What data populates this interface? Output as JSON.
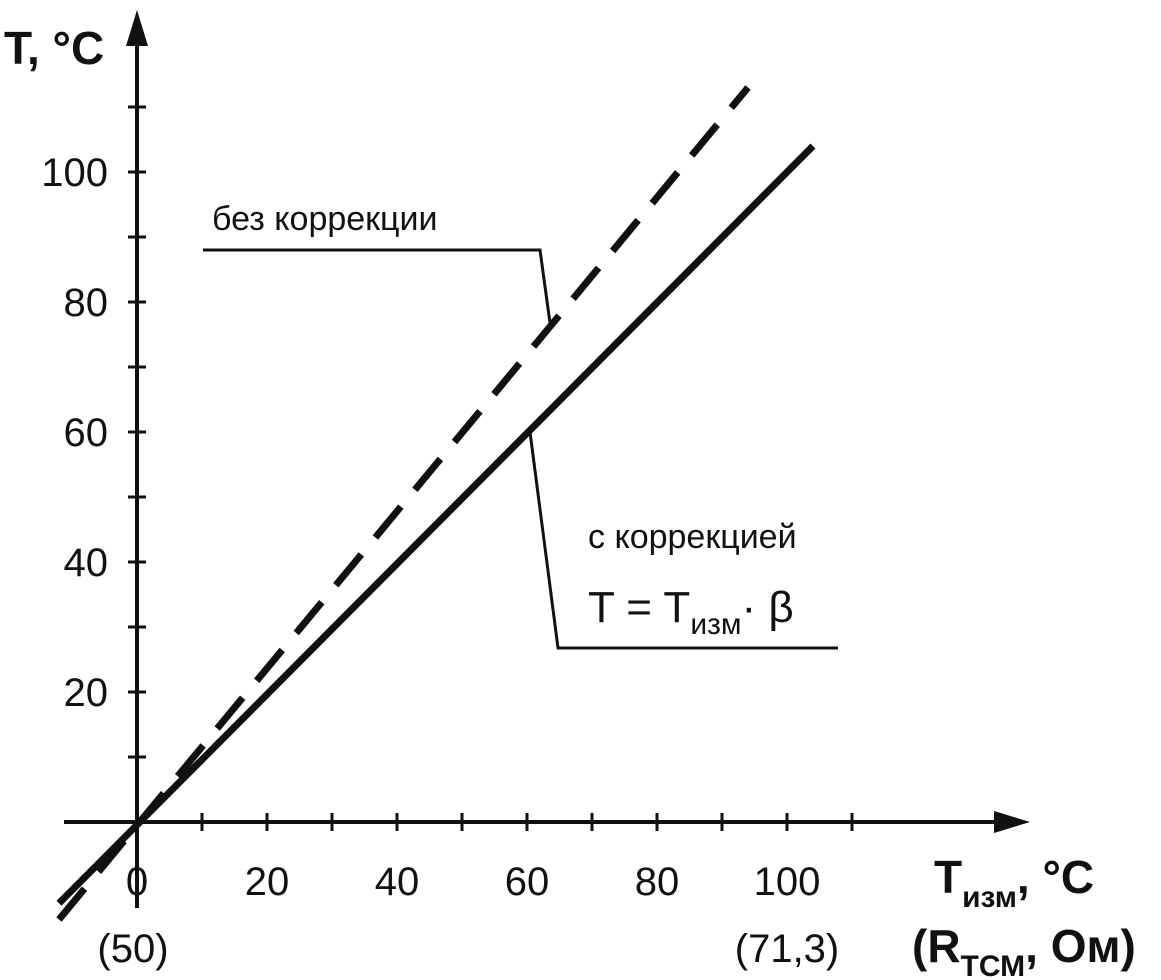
{
  "chart_data": {
    "type": "line",
    "y_axis": {
      "title": "T, °C",
      "ticks": [
        "20",
        "40",
        "60",
        "80",
        "100"
      ],
      "tick_values": [
        20,
        40,
        60,
        80,
        100
      ],
      "range": [
        -14,
        118
      ]
    },
    "x_axis": {
      "title_main": "T",
      "title_sub": "изм",
      "title_unit": ", °C",
      "alt_title_open": "(R",
      "alt_title_sub": "ТСМ",
      "alt_title_close": ", Ом)",
      "ticks": [
        "0",
        "20",
        "40",
        "60",
        "80",
        "100"
      ],
      "tick_values": [
        0,
        20,
        40,
        60,
        80,
        100
      ],
      "alt_ticks": [
        "(50)",
        "(71,3)"
      ],
      "alt_tick_values": [
        0,
        100
      ],
      "range": [
        -11,
        136
      ]
    },
    "series": [
      {
        "name": "без коррекции",
        "style": "dashed",
        "points": [
          [
            -12,
            -15
          ],
          [
            94,
            113
          ]
        ]
      },
      {
        "name": "с коррекцией",
        "style": "solid",
        "points": [
          [
            -12,
            -12.5
          ],
          [
            104,
            104
          ]
        ]
      }
    ],
    "annotations": {
      "without_correction": "без коррекции",
      "with_correction": "с коррекцией",
      "formula_lhs": "T = T",
      "formula_sub": "изм",
      "formula_rhs": "· β"
    },
    "colors": {
      "ink": "#111111",
      "background": "#ffffff"
    }
  }
}
